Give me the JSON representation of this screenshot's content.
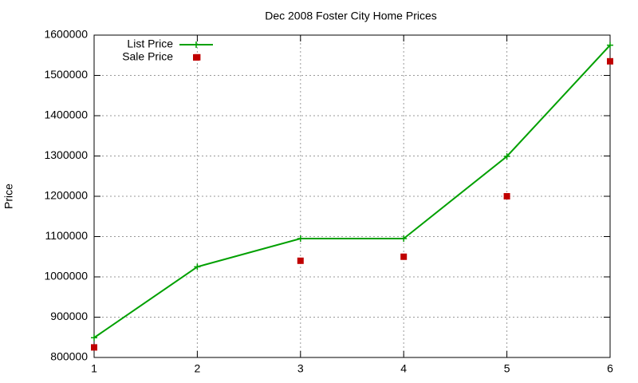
{
  "chart_data": {
    "type": "line",
    "title": "Dec 2008 Foster City Home Prices",
    "y_label": "Price",
    "x": [
      1,
      2,
      3,
      4,
      5,
      6
    ],
    "series": [
      {
        "name": "List Price",
        "color": "#00a000",
        "type": "line",
        "values": [
          849000,
          1025000,
          1095000,
          1095000,
          1299000,
          1575000
        ]
      },
      {
        "name": "Sale Price",
        "color": "#c00000",
        "type": "scatter",
        "values": [
          825000,
          1545000,
          1040000,
          1050000,
          1200000,
          1535000
        ]
      }
    ],
    "xlim": [
      1,
      6
    ],
    "xticks": [
      1,
      2,
      3,
      4,
      5,
      6
    ],
    "ylim": [
      800000,
      1600000
    ],
    "yticks": [
      800000,
      900000,
      1000000,
      1100000,
      1200000,
      1300000,
      1400000,
      1500000,
      1600000
    ],
    "grid": true,
    "legend": "top-left"
  }
}
